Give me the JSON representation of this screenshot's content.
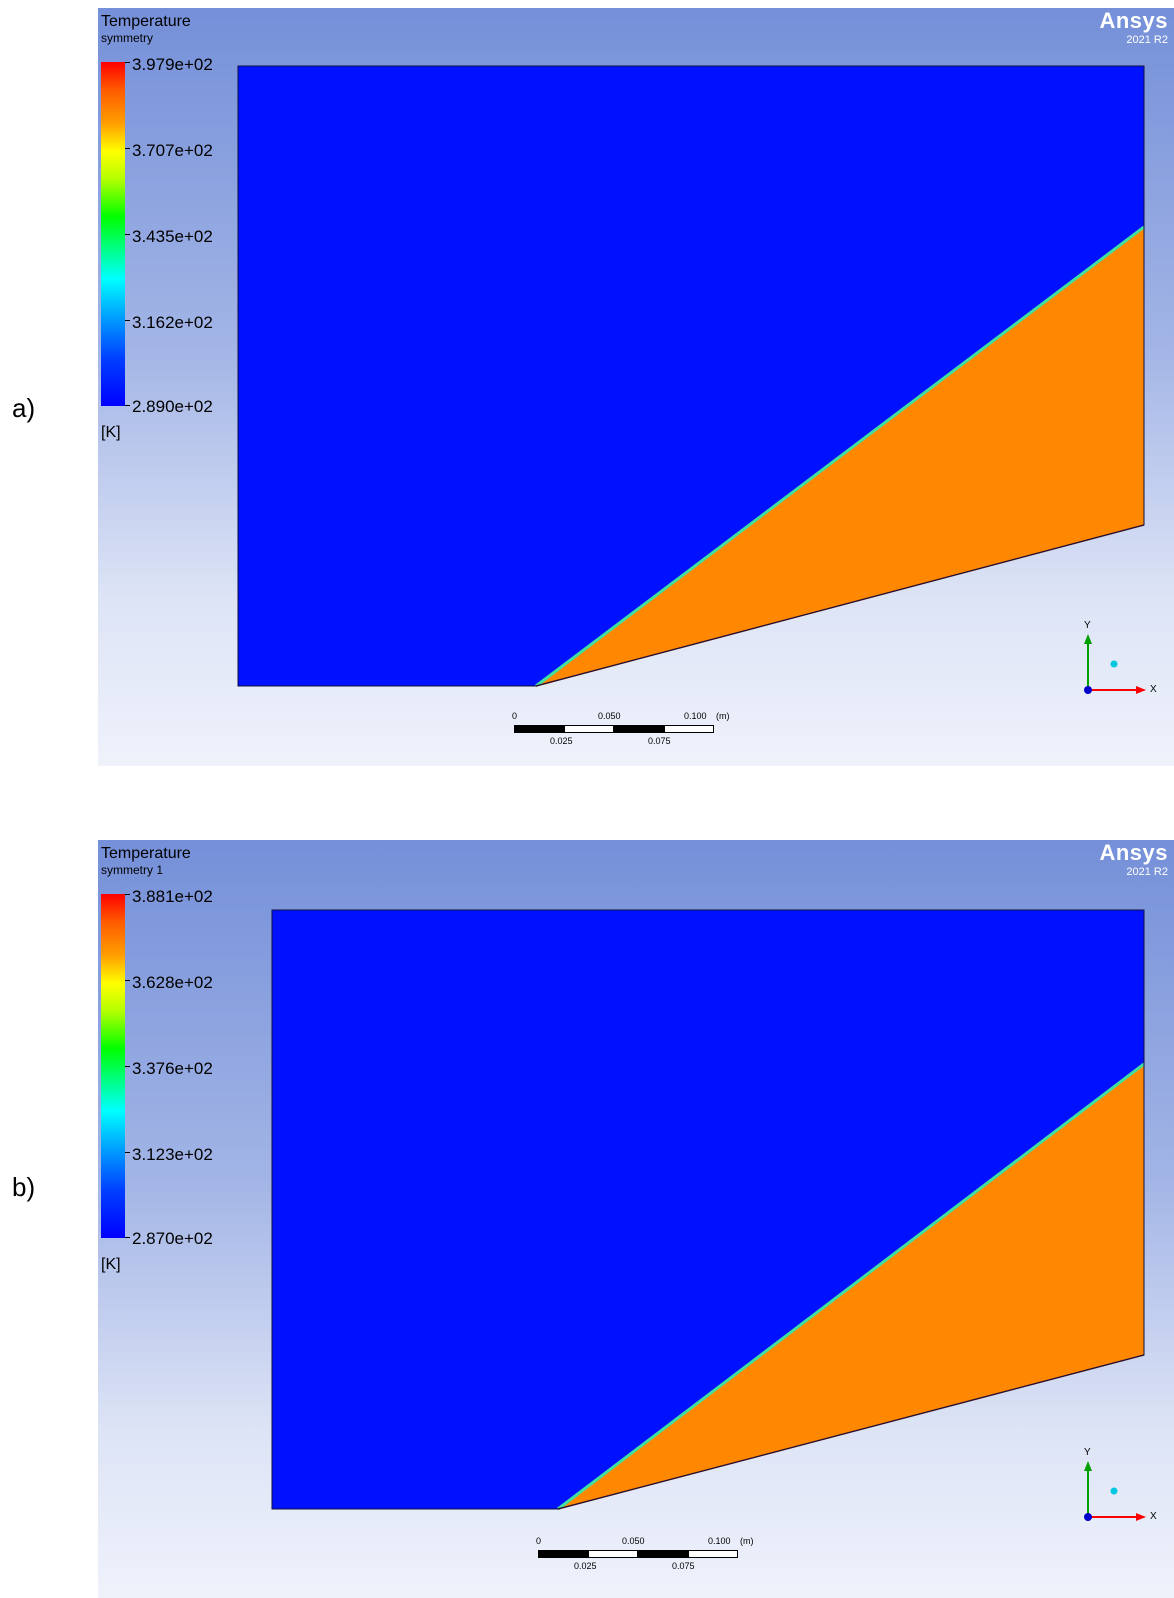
{
  "panels": [
    {
      "letter": "a)",
      "title": "Temperature",
      "subtitle": "symmetry",
      "legend": [
        "3.979e+02",
        "3.707e+02",
        "3.435e+02",
        "3.162e+02",
        "2.890e+02"
      ],
      "unit": "[K]",
      "brand": {
        "name": "Ansys",
        "version": "2021 R2"
      },
      "scale": {
        "top": [
          "0",
          "0.050",
          "0.100"
        ],
        "unit": "(m)",
        "bottom": [
          "0.025",
          "0.075"
        ]
      },
      "axes": {
        "x": "X",
        "y": "Y"
      }
    },
    {
      "letter": "b)",
      "title": "Temperature",
      "subtitle": "symmetry 1",
      "legend": [
        "3.881e+02",
        "3.628e+02",
        "3.376e+02",
        "3.123e+02",
        "2.870e+02"
      ],
      "unit": "[K]",
      "brand": {
        "name": "Ansys",
        "version": "2021 R2"
      },
      "scale": {
        "top": [
          "0",
          "0.050",
          "0.100"
        ],
        "unit": "(m)",
        "bottom": [
          "0.025",
          "0.075"
        ]
      },
      "axes": {
        "x": "X",
        "y": "Y"
      }
    }
  ],
  "colors": {
    "cold": "#0011ff",
    "hot": "#ff8800",
    "interface": "#3fe0a0"
  }
}
